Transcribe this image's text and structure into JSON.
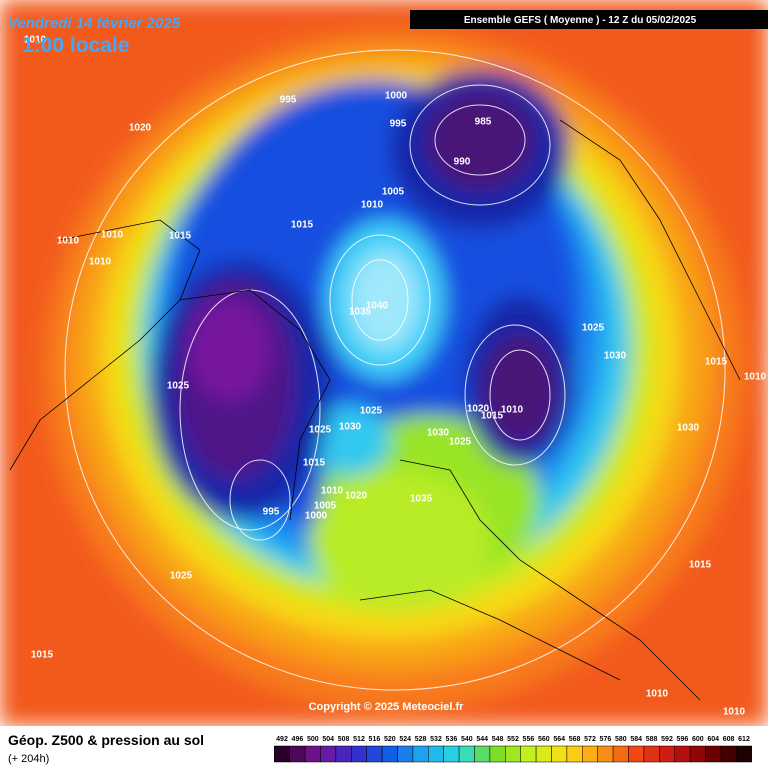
{
  "header": {
    "date": "Vendredi 14 février 2025",
    "time": "1:00 locale",
    "run": "Ensemble GEFS  ( Moyenne )  -  12 Z du 05/02/2025"
  },
  "isobar_labels": [
    "1010",
    "1020",
    "995",
    "1000",
    "995",
    "985",
    "990",
    "1005",
    "1010",
    "1015",
    "1015",
    "1010",
    "1010",
    "1010",
    "1040",
    "1035",
    "1025",
    "1030",
    "1015",
    "1010",
    "1025",
    "1020",
    "1010",
    "1015",
    "1025",
    "1025",
    "1030",
    "1030",
    "1025",
    "1015",
    "1010",
    "1020",
    "1005",
    "1000",
    "995",
    "1035",
    "1030",
    "1015",
    "1025",
    "1015",
    "1010",
    "1010"
  ],
  "copyright": "Copyright © 2025 Meteociel.fr",
  "footer": {
    "title": "Géop. Z500 & pression au sol",
    "lead": "(+ 204h)"
  },
  "scale": {
    "labels": [
      "492",
      "496",
      "500",
      "504",
      "508",
      "512",
      "516",
      "520",
      "524",
      "528",
      "532",
      "536",
      "540",
      "544",
      "548",
      "552",
      "556",
      "560",
      "564",
      "568",
      "572",
      "576",
      "580",
      "584",
      "588",
      "592",
      "596",
      "600",
      "604",
      "608",
      "612"
    ]
  }
}
